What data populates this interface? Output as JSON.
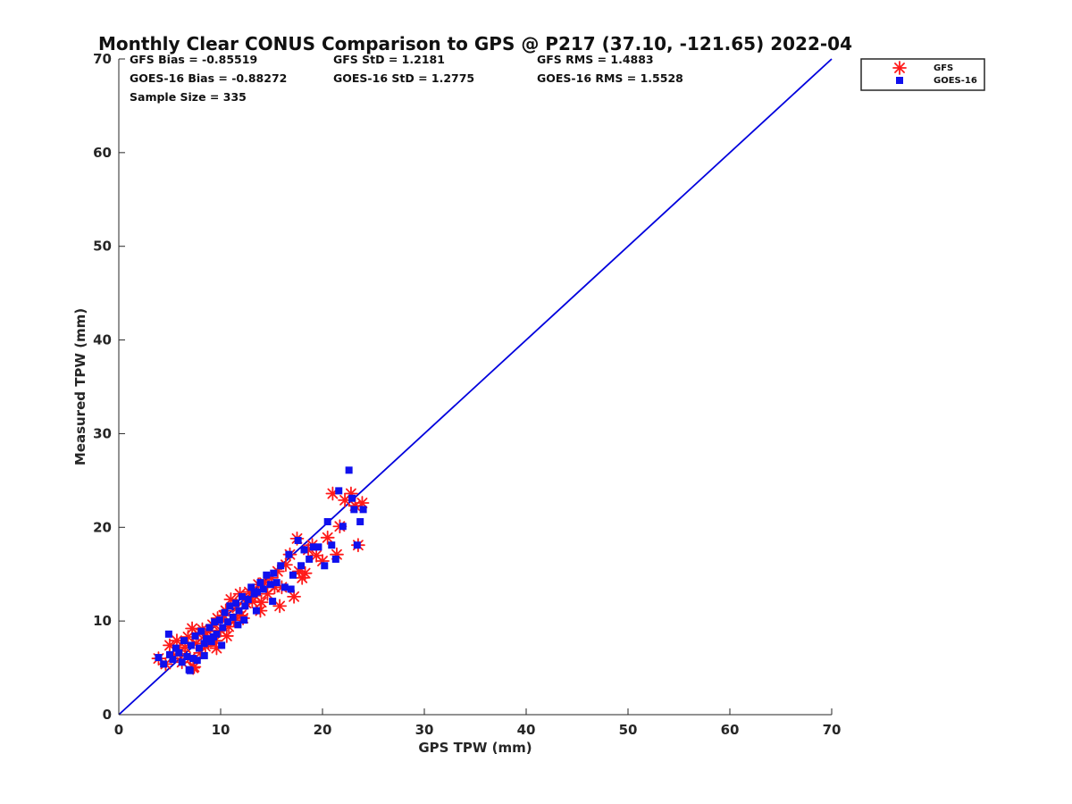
{
  "chart_data": {
    "type": "scatter",
    "title": "Monthly Clear CONUS Comparison to GPS @ P217 (37.10, -121.65) 2022-04",
    "xlabel": "GPS TPW (mm)",
    "ylabel": "Measured TPW (mm)",
    "xlim": [
      0,
      70
    ],
    "ylim": [
      0,
      70
    ],
    "xticks": [
      "0",
      "10",
      "20",
      "30",
      "40",
      "50",
      "60",
      "70"
    ],
    "yticks": [
      "0",
      "10",
      "20",
      "30",
      "40",
      "50",
      "60",
      "70"
    ],
    "legend_position": "top-right",
    "stats": {
      "gfs_bias": "GFS Bias = -0.85519",
      "gfs_std": "GFS StD = 1.2181",
      "gfs_rms": "GFS RMS = 1.4883",
      "goes_bias": "GOES-16 Bias = -0.88272",
      "goes_std": "GOES-16 StD = 1.2775",
      "goes_rms": "GOES-16 RMS = 1.5528",
      "sample_size": "Sample Size = 335"
    },
    "reference_line": {
      "name": "1:1",
      "x": [
        0,
        70
      ],
      "y": [
        0,
        70
      ],
      "color": "#0000dd"
    },
    "series": [
      {
        "name": "GFS",
        "marker": "asterisk",
        "color": "#ff1a1a",
        "x": [
          3.9,
          4.6,
          5.0,
          5.4,
          5.7,
          6.0,
          6.2,
          6.5,
          6.8,
          7.0,
          7.2,
          7.4,
          7.6,
          7.8,
          8.0,
          8.2,
          8.5,
          8.7,
          9.0,
          9.2,
          9.5,
          9.7,
          10.0,
          10.3,
          10.5,
          10.8,
          11.0,
          11.3,
          11.6,
          11.9,
          12.2,
          12.5,
          12.8,
          13.1,
          13.4,
          13.7,
          14.0,
          14.3,
          14.6,
          15.0,
          15.3,
          15.6,
          16.0,
          16.4,
          16.8,
          17.2,
          17.5,
          17.7,
          18.0,
          18.3,
          18.6,
          19.0,
          19.4,
          20.0,
          20.5,
          21.0,
          21.4,
          21.7,
          22.2,
          22.8,
          23.2,
          23.5,
          23.9,
          7.3,
          8.8,
          10.6,
          12.0,
          13.9,
          15.8,
          9.6
        ],
        "y": [
          6.0,
          5.4,
          7.4,
          6.3,
          7.9,
          6.8,
          5.6,
          7.2,
          8.3,
          6.0,
          9.2,
          5.1,
          7.6,
          8.6,
          6.6,
          9.1,
          7.3,
          8.9,
          8.1,
          9.6,
          7.9,
          10.3,
          9.0,
          10.6,
          11.1,
          9.4,
          12.3,
          10.1,
          11.4,
          12.9,
          10.3,
          11.9,
          13.1,
          12.1,
          12.7,
          13.9,
          12.0,
          14.1,
          12.9,
          14.6,
          13.6,
          15.3,
          13.6,
          16.0,
          17.1,
          12.6,
          18.8,
          15.3,
          14.6,
          15.1,
          17.6,
          18.1,
          17.0,
          16.4,
          18.9,
          23.6,
          17.1,
          20.1,
          22.9,
          23.6,
          22.3,
          18.1,
          22.6,
          5.0,
          7.8,
          8.4,
          10.6,
          11.1,
          11.6,
          7.1
        ]
      },
      {
        "name": "GOES-16",
        "marker": "square",
        "color": "#1010ee",
        "x": [
          3.9,
          4.4,
          4.9,
          5.0,
          5.3,
          5.6,
          5.9,
          6.2,
          6.4,
          6.7,
          6.9,
          7.1,
          7.3,
          7.5,
          7.7,
          7.9,
          8.1,
          8.4,
          8.6,
          8.9,
          9.1,
          9.4,
          9.6,
          9.9,
          10.2,
          10.4,
          10.7,
          10.9,
          11.2,
          11.5,
          11.8,
          12.1,
          12.4,
          12.7,
          13.0,
          13.3,
          13.6,
          13.9,
          14.2,
          14.5,
          14.9,
          15.2,
          15.5,
          15.9,
          16.3,
          16.7,
          17.1,
          17.6,
          17.9,
          18.2,
          18.7,
          19.1,
          19.6,
          20.2,
          20.5,
          20.9,
          21.3,
          21.6,
          22.0,
          22.6,
          22.9,
          23.1,
          23.4,
          23.7,
          24.0,
          7.0,
          8.4,
          10.1,
          11.7,
          13.5,
          15.1,
          16.9,
          12.3,
          9.3
        ],
        "y": [
          6.1,
          5.4,
          8.6,
          6.4,
          5.9,
          7.1,
          6.6,
          5.6,
          7.9,
          6.2,
          4.8,
          7.4,
          6.0,
          8.4,
          5.8,
          7.1,
          8.9,
          7.6,
          8.1,
          9.3,
          7.8,
          9.9,
          8.6,
          10.1,
          9.3,
          10.9,
          9.9,
          11.6,
          10.4,
          11.9,
          11.1,
          12.6,
          11.6,
          12.3,
          13.6,
          12.9,
          13.1,
          14.1,
          13.4,
          14.9,
          13.9,
          15.1,
          14.1,
          15.9,
          13.6,
          17.1,
          14.9,
          18.6,
          15.9,
          17.6,
          16.6,
          17.9,
          17.9,
          15.9,
          20.6,
          18.1,
          16.6,
          23.9,
          20.1,
          26.1,
          23.1,
          21.9,
          18.1,
          20.6,
          21.9,
          4.7,
          6.3,
          7.4,
          9.6,
          11.1,
          12.1,
          13.4,
          10.1,
          8.3
        ]
      }
    ]
  }
}
